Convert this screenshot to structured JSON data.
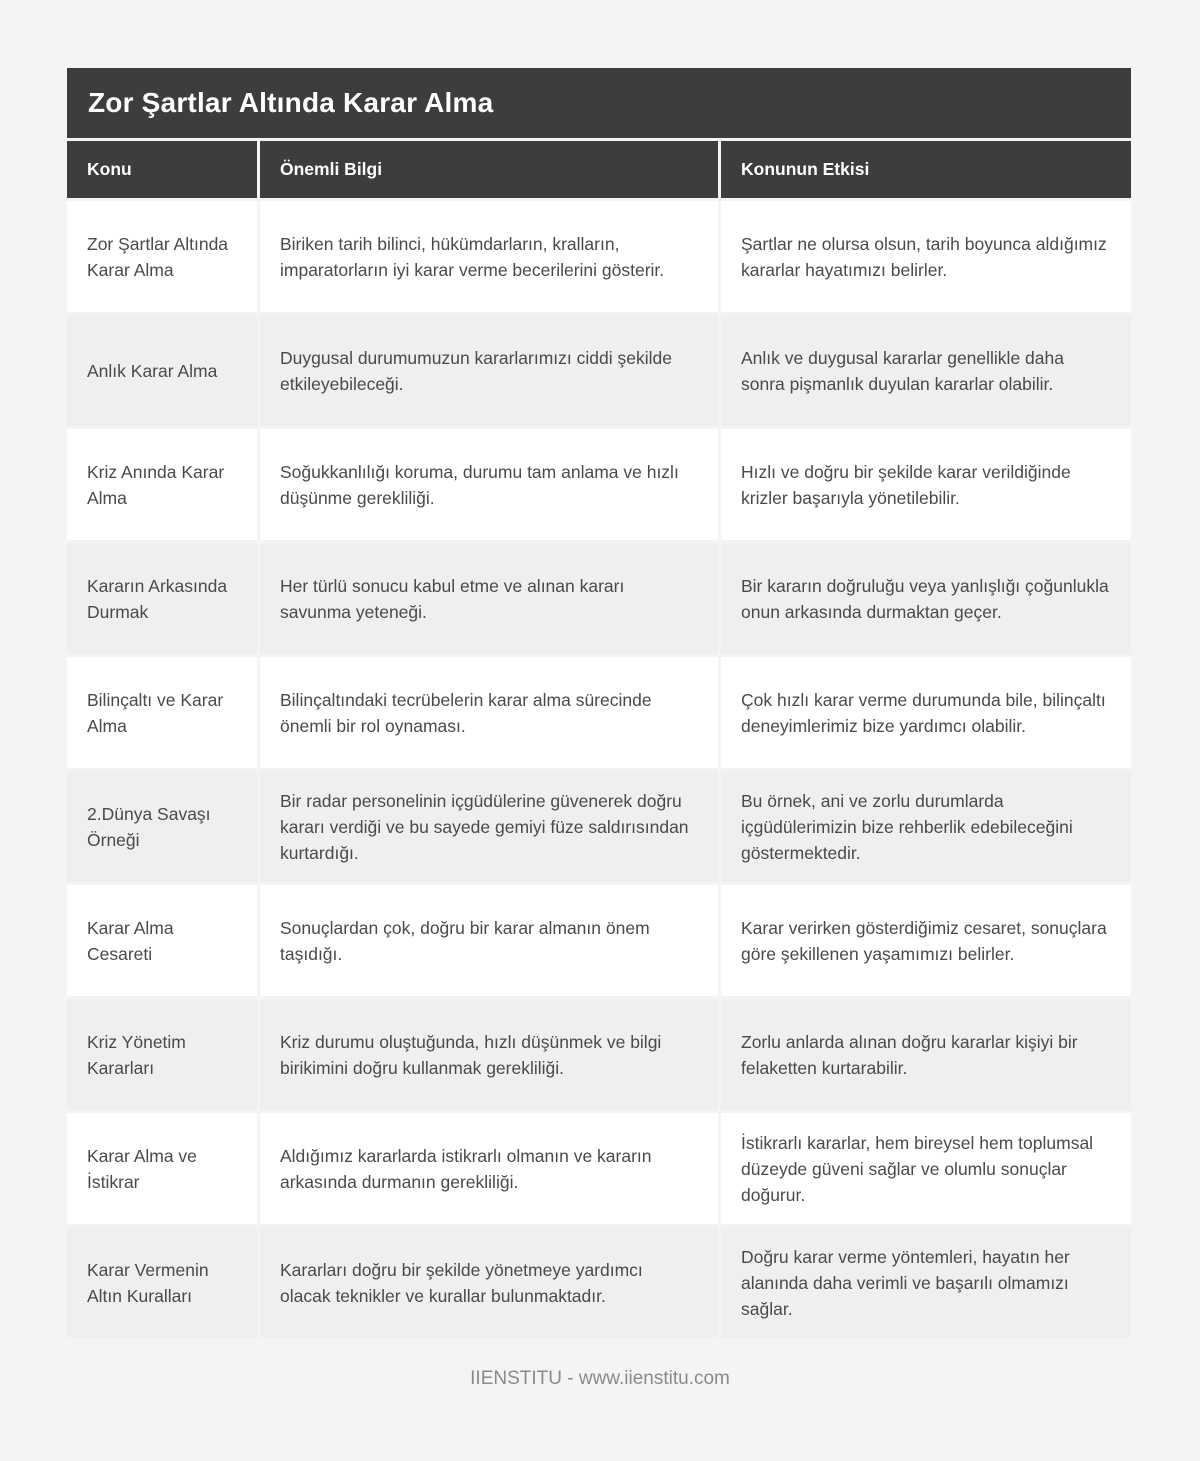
{
  "page": {
    "title": "Zor Şartlar Altında Karar Alma",
    "footer": "IIENSTITU - www.iienstitu.com"
  },
  "table": {
    "columns": [
      "Konu",
      "Önemli Bilgi",
      "Konunun Etkisi"
    ],
    "rows": [
      {
        "konu": "Zor Şartlar Altında Karar Alma",
        "bilgi": "Biriken tarih bilinci, hükümdarların, kralların, imparatorların iyi karar verme becerilerini gösterir.",
        "etki": "Şartlar ne olursa olsun, tarih boyunca aldığımız kararlar hayatımızı belirler."
      },
      {
        "konu": "Anlık Karar Alma",
        "bilgi": "Duygusal durumumuzun kararlarımızı ciddi şekilde etkileyebileceği.",
        "etki": "Anlık ve duygusal kararlar genellikle daha sonra pişmanlık duyulan kararlar olabilir."
      },
      {
        "konu": "Kriz Anında Karar Alma",
        "bilgi": "Soğukkanlılığı koruma, durumu tam anlama ve hızlı düşünme gerekliliği.",
        "etki": "Hızlı ve doğru bir şekilde karar verildiğinde krizler başarıyla yönetilebilir."
      },
      {
        "konu": "Kararın Arkasında Durmak",
        "bilgi": "Her türlü sonucu kabul etme ve alınan kararı savunma yeteneği.",
        "etki": "Bir kararın doğruluğu veya yanlışlığı çoğunlukla onun arkasında durmaktan geçer."
      },
      {
        "konu": "Bilinçaltı ve Karar Alma",
        "bilgi": "Bilinçaltındaki tecrübelerin karar alma sürecinde önemli bir rol oynaması.",
        "etki": "Çok hızlı karar verme durumunda bile, bilinçaltı deneyimlerimiz bize yardımcı olabilir."
      },
      {
        "konu": "2.Dünya Savaşı Örneği",
        "bilgi": "Bir radar personelinin içgüdülerine güvenerek doğru kararı verdiği ve bu sayede gemiyi füze saldırısından kurtardığı.",
        "etki": "Bu örnek, ani ve zorlu durumlarda içgüdülerimizin bize rehberlik edebileceğini göstermektedir."
      },
      {
        "konu": "Karar Alma Cesareti",
        "bilgi": "Sonuçlardan çok, doğru bir karar almanın önem taşıdığı.",
        "etki": "Karar verirken gösterdiğimiz cesaret, sonuçlara göre şekillenen yaşamımızı belirler."
      },
      {
        "konu": "Kriz Yönetim Kararları",
        "bilgi": "Kriz durumu oluştuğunda, hızlı düşünmek ve bilgi birikimini doğru kullanmak gerekliliği.",
        "etki": "Zorlu anlarda alınan doğru kararlar kişiyi bir felaketten kurtarabilir."
      },
      {
        "konu": "Karar Alma ve İstikrar",
        "bilgi": "Aldığımız kararlarda istikrarlı olmanın ve kararın arkasında durmanın gerekliliği.",
        "etki": "İstikrarlı kararlar, hem bireysel hem toplumsal düzeyde güveni sağlar ve olumlu sonuçlar doğurur."
      },
      {
        "konu": "Karar Vermenin Altın Kuralları",
        "bilgi": "Kararları doğru bir şekilde yönetmeye yardımcı olacak teknikler ve kurallar bulunmaktadır.",
        "etki": "Doğru karar verme yöntemleri, hayatın her alanında daha verimli ve başarılı olmamızı sağlar."
      }
    ]
  },
  "colors": {
    "page_bg": "#f4f4f4",
    "header_bg": "#3d3d3d",
    "header_text": "#ffffff",
    "row_bg": "#ffffff",
    "row_alt_bg": "#efefef",
    "body_text": "#4a4a4a",
    "footer_text": "#8a8a8a"
  }
}
